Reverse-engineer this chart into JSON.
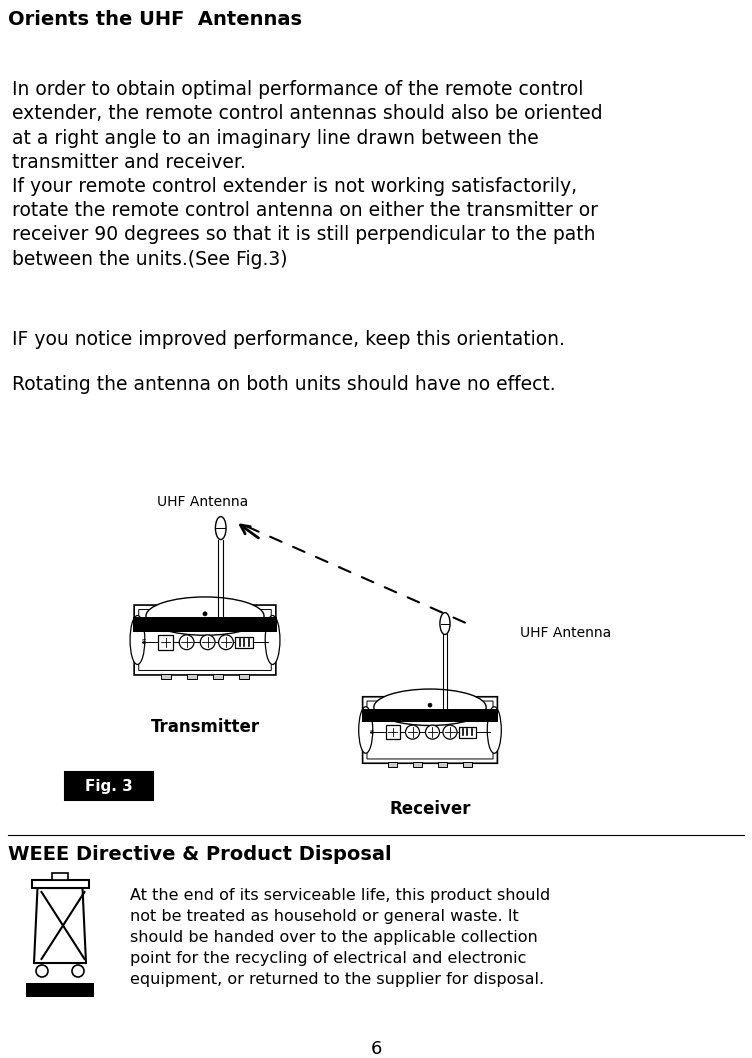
{
  "bg_color": "#ffffff",
  "title": "Orients the UHF  Antennas",
  "title_fontsize": 14,
  "para1": "In order to obtain optimal performance of the remote control\nextender, the remote control antennas should also be oriented\nat a right angle to an imaginary line drawn between the\ntransmitter and receiver.\nIf your remote control extender is not working satisfactorily,\nrotate the remote control antenna on either the transmitter or\nreceiver 90 degrees so that it is still perpendicular to the path\nbetween the units.(See Fig.3)",
  "para1_fontsize": 13.5,
  "para2": "IF you notice improved performance, keep this orientation.",
  "para2_fontsize": 13.5,
  "para3": "Rotating the antenna on both units should have no effect.",
  "para3_fontsize": 13.5,
  "weee_title": "WEEE Directive & Product Disposal",
  "weee_title_fontsize": 14,
  "weee_text": "At the end of its serviceable life, this product should\nnot be treated as household or general waste. It\nshould be handed over to the applicable collection\npoint for the recycling of electrical and electronic\nequipment, or returned to the supplier for disposal.",
  "weee_text_fontsize": 11.5,
  "page_number": "6",
  "label_uhf_tx": "UHF Antenna",
  "label_uhf_rx": "UHF Antenna",
  "label_tx": "Transmitter",
  "label_rx": "Receiver",
  "label_fig3": "Fig. 3"
}
